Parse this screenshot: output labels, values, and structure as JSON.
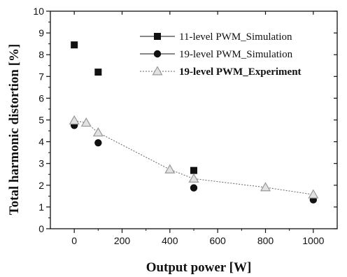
{
  "chart_data": {
    "type": "scatter",
    "xlabel": "Output power [W]",
    "ylabel": "Total harmonic distortion [%]",
    "xlim": [
      -100,
      1100
    ],
    "ylim": [
      0,
      10
    ],
    "xticks": [
      0,
      200,
      400,
      600,
      800,
      1000
    ],
    "yticks": [
      0,
      1,
      2,
      3,
      4,
      5,
      6,
      7,
      8,
      9,
      10
    ],
    "grid": false,
    "legend_placement": "top-right",
    "series": [
      {
        "name": "11-level PWM_Simulation",
        "marker": "square",
        "color": "#111111",
        "line": false,
        "x": [
          0,
          100,
          500
        ],
        "y": [
          8.45,
          7.2,
          2.68
        ]
      },
      {
        "name": "19-level PWM_Simulation",
        "marker": "circle",
        "color": "#111111",
        "line": false,
        "x": [
          0,
          100,
          500,
          1000
        ],
        "y": [
          4.75,
          3.95,
          1.88,
          1.33
        ]
      },
      {
        "name": "19-level PWM_Experiment",
        "marker": "triangle",
        "color": "#999999",
        "line": true,
        "bold_label": true,
        "x": [
          0,
          50,
          100,
          400,
          500,
          800,
          1000
        ],
        "y": [
          4.97,
          4.87,
          4.42,
          2.72,
          2.3,
          1.9,
          1.57
        ]
      }
    ]
  }
}
